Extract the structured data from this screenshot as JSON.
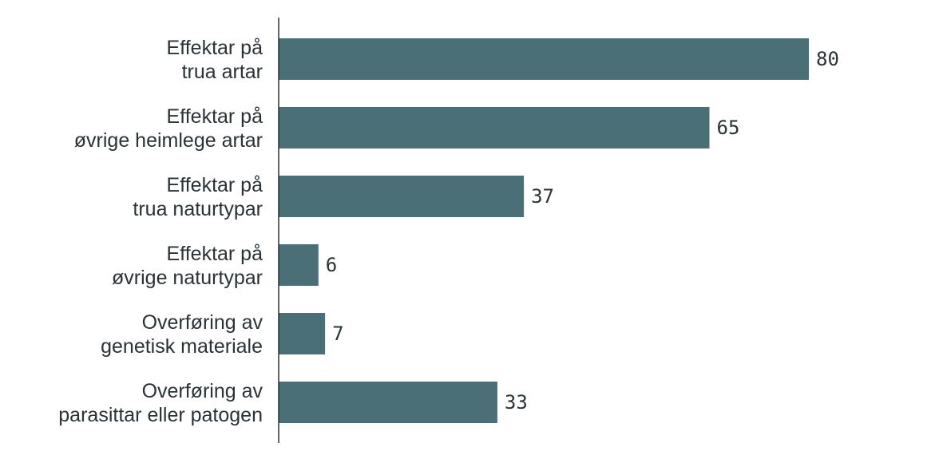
{
  "chart_data": {
    "type": "bar",
    "orientation": "horizontal",
    "title": "",
    "xlabel": "",
    "ylabel": "",
    "categories": [
      [
        "Effektar på",
        "trua artar"
      ],
      [
        "Effektar på",
        "øvrige heimlege artar"
      ],
      [
        "Effektar på",
        "trua naturtypar"
      ],
      [
        "Effektar på",
        "øvrige naturtypar"
      ],
      [
        "Overføring av",
        "genetisk materiale"
      ],
      [
        "Overføring av",
        "parasittar eller patogen"
      ]
    ],
    "values": [
      80,
      65,
      37,
      6,
      7,
      33
    ],
    "xlim": [
      0,
      80
    ],
    "grid": false,
    "bar_color": "#4a6f77",
    "axis_color": "#2a3236"
  }
}
